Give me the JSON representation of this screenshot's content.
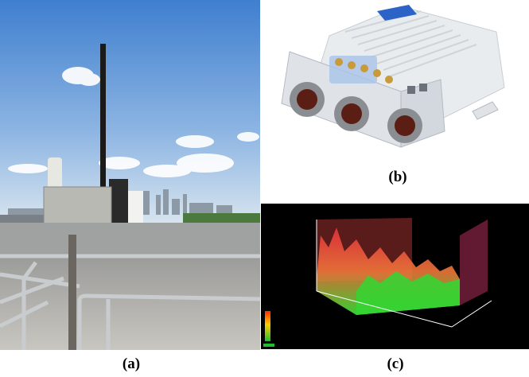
{
  "captions": {
    "a": "(a)",
    "b": "(b)",
    "c": "(c)"
  },
  "panels": {
    "a": {
      "subject": "rooftop-antenna-mast"
    },
    "b": {
      "subject": "rugged-sdr-radio-unit"
    },
    "c": {
      "subject": "3d-spectrogram-waterfall"
    }
  },
  "colors": {
    "sky": "#6f9fd8",
    "spectrogram_background": "#000000",
    "spectrogram_high": "#e8323c",
    "spectrogram_low": "#39e639",
    "device_body": "#e8ebee",
    "device_accent": "#2c63c7"
  }
}
